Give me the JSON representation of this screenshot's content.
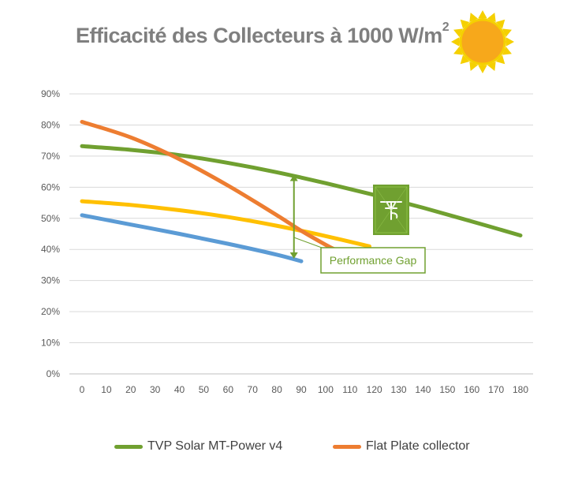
{
  "chart_data": {
    "type": "line",
    "title": "Efficacité des Collecteurs à 1000 W/m",
    "title_superscript": "2",
    "x": [
      0,
      10,
      20,
      30,
      40,
      50,
      60,
      70,
      80,
      90,
      100,
      110,
      120,
      130,
      140,
      150,
      160,
      170,
      180
    ],
    "xlim": [
      0,
      180
    ],
    "ylim": [
      0,
      90
    ],
    "y_ticks": [
      "0%",
      "10%",
      "20%",
      "30%",
      "40%",
      "50%",
      "60%",
      "70%",
      "80%",
      "90%"
    ],
    "y_tick_values": [
      0,
      10,
      20,
      30,
      40,
      50,
      60,
      70,
      80,
      90
    ],
    "grid": true,
    "series": [
      {
        "name": "TVP Solar MT-Power v4",
        "color": "#70a030",
        "in_legend": true,
        "points": [
          [
            0,
            73.2
          ],
          [
            20,
            72.0
          ],
          [
            40,
            70.3
          ],
          [
            60,
            67.8
          ],
          [
            80,
            64.8
          ],
          [
            100,
            61.3
          ],
          [
            120,
            57.5
          ],
          [
            140,
            53.4
          ],
          [
            160,
            49.0
          ],
          [
            180,
            44.5
          ]
        ]
      },
      {
        "name": "Flat Plate collector",
        "color": "#ed7d31",
        "in_legend": true,
        "points": [
          [
            0,
            81.0
          ],
          [
            20,
            76.0
          ],
          [
            40,
            69.0
          ],
          [
            60,
            60.5
          ],
          [
            80,
            51.0
          ],
          [
            90,
            46.0
          ],
          [
            100,
            41.5
          ],
          [
            105,
            39.5
          ]
        ]
      },
      {
        "name": "",
        "color": "#ffc000",
        "in_legend": false,
        "points": [
          [
            0,
            55.5
          ],
          [
            20,
            54.3
          ],
          [
            40,
            52.6
          ],
          [
            60,
            50.4
          ],
          [
            80,
            47.6
          ],
          [
            100,
            44.3
          ],
          [
            118,
            41.0
          ]
        ]
      },
      {
        "name": "",
        "color": "#5b9bd5",
        "in_legend": false,
        "points": [
          [
            0,
            51.0
          ],
          [
            20,
            48.0
          ],
          [
            40,
            45.0
          ],
          [
            60,
            41.8
          ],
          [
            80,
            38.3
          ],
          [
            90,
            36.2
          ]
        ]
      }
    ],
    "annotations": [
      {
        "type": "double-arrow",
        "x": 87,
        "y_from": 64,
        "y_to": 37,
        "color": "#70a030"
      },
      {
        "type": "label",
        "text": "Performance Gap"
      }
    ]
  },
  "legend": {
    "items": [
      {
        "label": "TVP Solar MT-Power v4",
        "color": "#70a030"
      },
      {
        "label": "Flat Plate collector",
        "color": "#ed7d31"
      }
    ]
  },
  "icons": {
    "sun": "sun-icon",
    "logo": "tvp-solar-logo"
  }
}
